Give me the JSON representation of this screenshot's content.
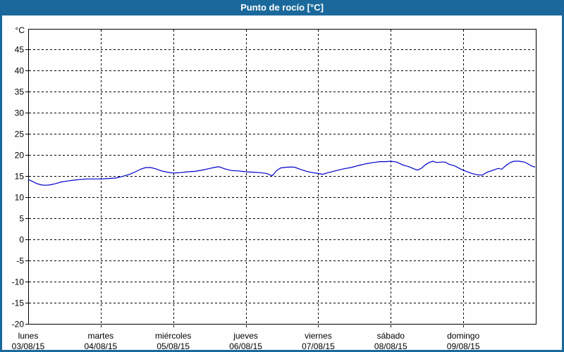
{
  "header": {
    "title": "Punto de rocío [°C]",
    "bar_color": "#1b699c",
    "text_color": "#ffffff"
  },
  "chart_data": {
    "type": "line",
    "title": "Punto de rocío [°C]",
    "ylabel": "°C",
    "xlabel": "",
    "ylim": [
      -20,
      50
    ],
    "yticks": [
      45,
      40,
      35,
      30,
      25,
      20,
      15,
      10,
      5,
      0,
      -5,
      -10,
      -15,
      -20
    ],
    "grid": "dashed",
    "legend_position": "none",
    "background": "#fdfefd",
    "plot_border_color": "#000000",
    "grid_color": "#000000",
    "x_categories": [
      {
        "name": "lunes",
        "date": "03/08/15"
      },
      {
        "name": "martes",
        "date": "04/08/15"
      },
      {
        "name": "miércoles",
        "date": "05/08/15"
      },
      {
        "name": "jueves",
        "date": "06/08/15"
      },
      {
        "name": "viernes",
        "date": "07/08/15"
      },
      {
        "name": "sábado",
        "date": "08/08/15"
      },
      {
        "name": "domingo",
        "date": "09/08/15"
      }
    ],
    "series": [
      {
        "name": "Punto de rocío",
        "color": "#0000cc",
        "x_unit": "days_from_start",
        "points": [
          [
            0.0,
            14.2
          ],
          [
            0.06,
            13.7
          ],
          [
            0.12,
            13.2
          ],
          [
            0.18,
            12.9
          ],
          [
            0.24,
            12.8
          ],
          [
            0.3,
            12.9
          ],
          [
            0.38,
            13.2
          ],
          [
            0.46,
            13.6
          ],
          [
            0.54,
            13.8
          ],
          [
            0.62,
            14.0
          ],
          [
            0.72,
            14.2
          ],
          [
            0.82,
            14.3
          ],
          [
            0.92,
            14.3
          ],
          [
            1.0,
            14.3
          ],
          [
            1.1,
            14.4
          ],
          [
            1.2,
            14.5
          ],
          [
            1.3,
            14.9
          ],
          [
            1.4,
            15.4
          ],
          [
            1.48,
            16.0
          ],
          [
            1.55,
            16.6
          ],
          [
            1.62,
            17.0
          ],
          [
            1.69,
            17.0
          ],
          [
            1.76,
            16.7
          ],
          [
            1.84,
            16.2
          ],
          [
            1.92,
            15.9
          ],
          [
            2.0,
            15.7
          ],
          [
            2.1,
            15.8
          ],
          [
            2.2,
            16.0
          ],
          [
            2.3,
            16.1
          ],
          [
            2.4,
            16.4
          ],
          [
            2.48,
            16.7
          ],
          [
            2.56,
            17.0
          ],
          [
            2.63,
            17.2
          ],
          [
            2.71,
            16.7
          ],
          [
            2.8,
            16.3
          ],
          [
            2.9,
            16.2
          ],
          [
            3.0,
            16.0
          ],
          [
            3.1,
            15.9
          ],
          [
            3.19,
            15.8
          ],
          [
            3.29,
            15.6
          ],
          [
            3.34,
            15.2
          ],
          [
            3.37,
            15.1
          ],
          [
            3.42,
            16.2
          ],
          [
            3.48,
            16.9
          ],
          [
            3.58,
            17.1
          ],
          [
            3.67,
            17.1
          ],
          [
            3.75,
            16.6
          ],
          [
            3.84,
            16.1
          ],
          [
            3.92,
            15.8
          ],
          [
            4.0,
            15.6
          ],
          [
            4.06,
            15.4
          ],
          [
            4.14,
            15.8
          ],
          [
            4.23,
            16.2
          ],
          [
            4.35,
            16.7
          ],
          [
            4.45,
            17.0
          ],
          [
            4.56,
            17.5
          ],
          [
            4.66,
            17.9
          ],
          [
            4.76,
            18.2
          ],
          [
            4.85,
            18.4
          ],
          [
            4.93,
            18.4
          ],
          [
            5.0,
            18.5
          ],
          [
            5.08,
            18.3
          ],
          [
            5.17,
            17.6
          ],
          [
            5.25,
            17.2
          ],
          [
            5.32,
            16.7
          ],
          [
            5.37,
            16.4
          ],
          [
            5.42,
            16.8
          ],
          [
            5.48,
            17.7
          ],
          [
            5.53,
            18.2
          ],
          [
            5.58,
            18.5
          ],
          [
            5.63,
            18.2
          ],
          [
            5.7,
            18.3
          ],
          [
            5.75,
            18.3
          ],
          [
            5.8,
            17.8
          ],
          [
            5.88,
            17.4
          ],
          [
            5.97,
            16.6
          ],
          [
            6.04,
            16.1
          ],
          [
            6.12,
            15.6
          ],
          [
            6.19,
            15.3
          ],
          [
            6.26,
            15.2
          ],
          [
            6.33,
            15.9
          ],
          [
            6.4,
            16.3
          ],
          [
            6.48,
            16.8
          ],
          [
            6.53,
            16.6
          ],
          [
            6.59,
            17.5
          ],
          [
            6.65,
            18.2
          ],
          [
            6.7,
            18.5
          ],
          [
            6.77,
            18.5
          ],
          [
            6.84,
            18.3
          ],
          [
            6.89,
            17.9
          ],
          [
            6.94,
            17.4
          ],
          [
            6.99,
            17.1
          ]
        ]
      }
    ]
  }
}
